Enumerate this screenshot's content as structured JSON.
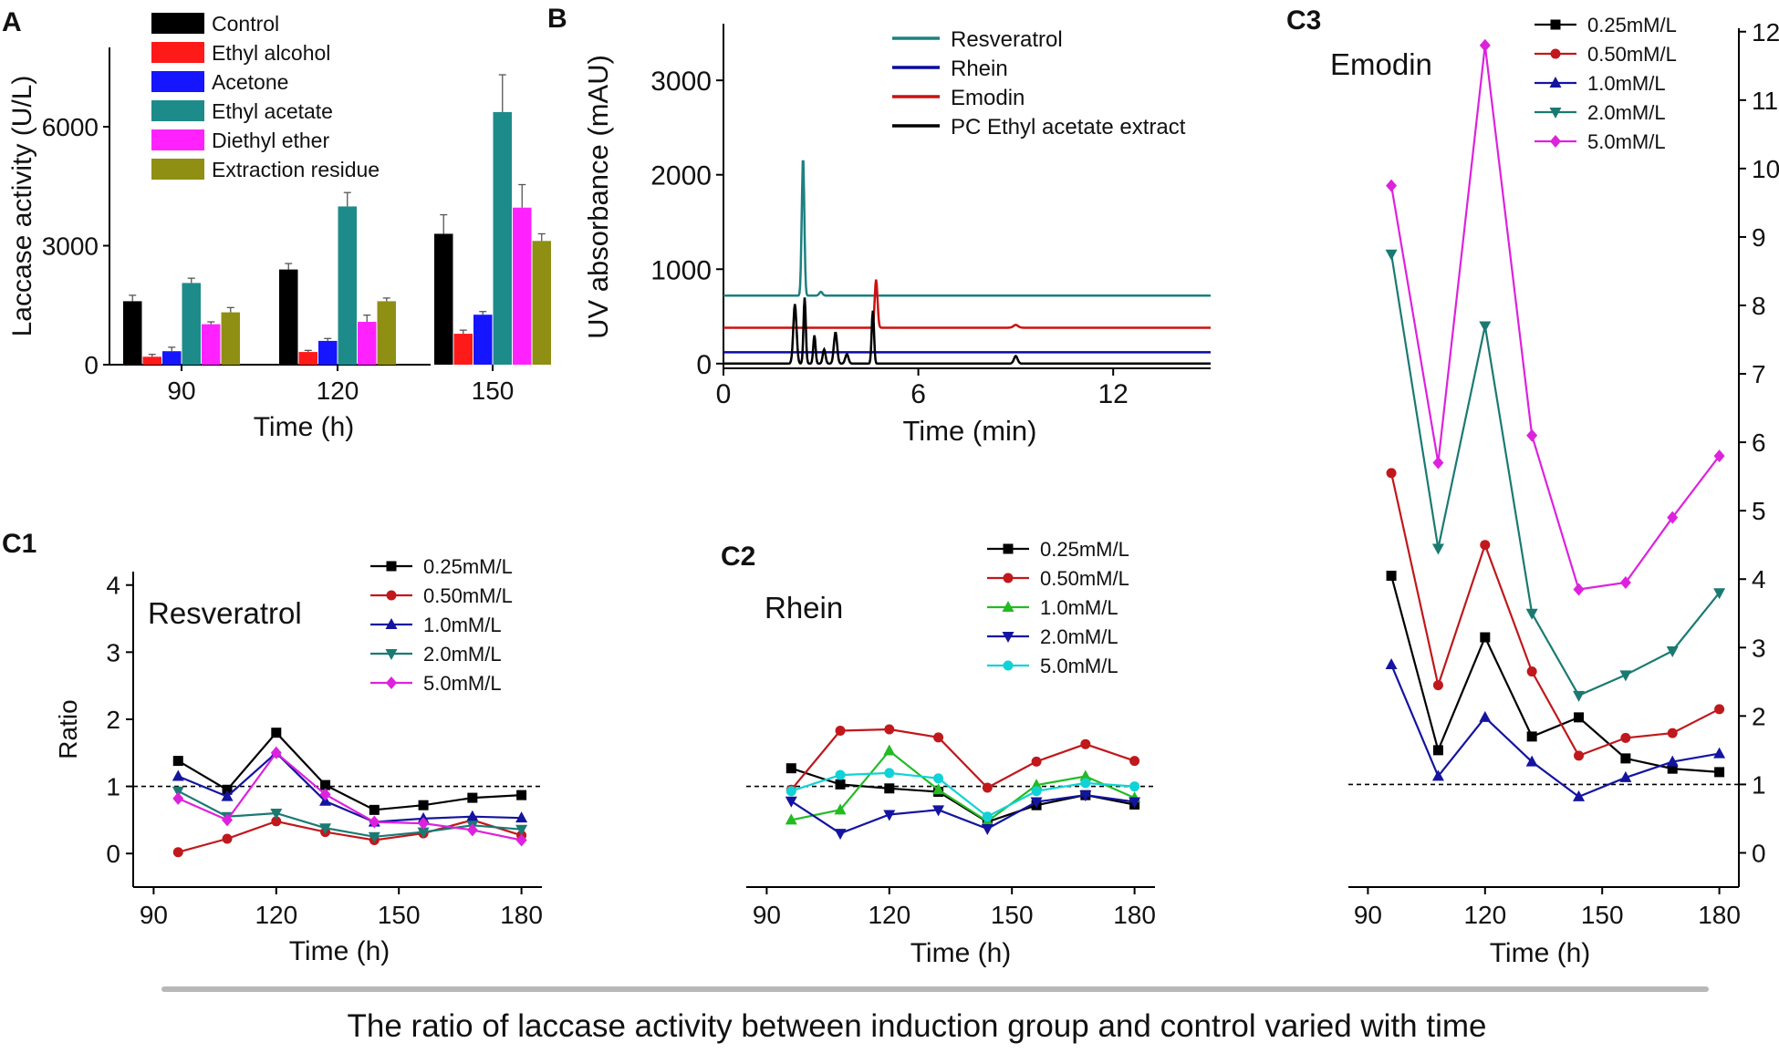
{
  "caption": "The ratio of laccase activity between induction group and control varied with time",
  "chart_data": [
    {
      "id": "A",
      "panel_label": "A",
      "type": "bar",
      "title": "",
      "xlabel": "Time (h)",
      "ylabel": "Laccase activity (U/L)",
      "ylim": [
        0,
        8000
      ],
      "yticks": [
        "0",
        "3000",
        "6000"
      ],
      "categories": [
        "90",
        "120",
        "150"
      ],
      "legend_position": "top-left",
      "series": [
        {
          "name": "Control",
          "color": "#000000",
          "values": [
            1600,
            2400,
            3300
          ],
          "errors": [
            150,
            150,
            480
          ]
        },
        {
          "name": "Ethyl alcohol",
          "color": "#ff1a1a",
          "values": [
            200,
            320,
            780
          ],
          "errors": [
            60,
            40,
            90
          ]
        },
        {
          "name": "Acetone",
          "color": "#1515ff",
          "values": [
            340,
            600,
            1260
          ],
          "errors": [
            100,
            60,
            80
          ]
        },
        {
          "name": "Ethyl acetate",
          "color": "#1e8b8b",
          "values": [
            2060,
            3990,
            6370
          ],
          "errors": [
            120,
            350,
            940
          ]
        },
        {
          "name": "Diethyl ether",
          "color": "#ff22ff",
          "values": [
            1020,
            1080,
            3960
          ],
          "errors": [
            60,
            170,
            580
          ]
        },
        {
          "name": "Extraction residue",
          "color": "#8f8f14",
          "values": [
            1320,
            1600,
            3120
          ],
          "errors": [
            120,
            80,
            180
          ]
        }
      ]
    },
    {
      "id": "B",
      "panel_label": "B",
      "type": "line",
      "title": "",
      "xlabel": "Time (min)",
      "ylabel": "UV absorbance (mAU)",
      "xlim": [
        0,
        15
      ],
      "ylim": [
        -50,
        3600
      ],
      "xticks": [
        "0",
        "6",
        "12"
      ],
      "yticks": [
        "0",
        "1000",
        "2000",
        "3000"
      ],
      "legend_position": "top-right",
      "series": [
        {
          "name": "Resveratrol",
          "color": "#1e8080",
          "baseline": 720,
          "peaks": [
            [
              2.45,
              1470,
              0.055
            ],
            [
              3.0,
              40,
              0.07
            ]
          ]
        },
        {
          "name": "Rhein",
          "color": "#0a0aa0",
          "baseline": 120,
          "peaks": []
        },
        {
          "name": "Emodin",
          "color": "#cc1111",
          "baseline": 380,
          "peaks": [
            [
              4.7,
              510,
              0.06
            ],
            [
              9.0,
              30,
              0.1
            ]
          ]
        },
        {
          "name": "PC Ethyl acetate extract",
          "color": "#000000",
          "baseline": 0,
          "peaks": [
            [
              2.2,
              630,
              0.07
            ],
            [
              2.5,
              700,
              0.05
            ],
            [
              2.8,
              300,
              0.05
            ],
            [
              3.1,
              150,
              0.06
            ],
            [
              3.45,
              330,
              0.07
            ],
            [
              3.8,
              100,
              0.07
            ],
            [
              4.6,
              560,
              0.05
            ],
            [
              9.0,
              80,
              0.08
            ]
          ]
        }
      ]
    },
    {
      "id": "C1",
      "panel_label": "C1",
      "type": "line",
      "title": "Resveratrol",
      "xlabel": "Time (h)",
      "ylabel": "Ratio",
      "xlim": [
        85,
        185
      ],
      "ylim": [
        -0.5,
        4.2
      ],
      "xticks": [
        "90",
        "120",
        "150",
        "180"
      ],
      "yticks": [
        "0",
        "1",
        "2",
        "3",
        "4"
      ],
      "reference_line": 1,
      "x": [
        96,
        108,
        120,
        132,
        144,
        156,
        168,
        180
      ],
      "legend_position": "top-right",
      "series": [
        {
          "name": "0.25mM/L",
          "color": "#000000",
          "marker": "square",
          "values": [
            1.38,
            0.95,
            1.8,
            1.02,
            0.65,
            0.72,
            0.83,
            0.87
          ]
        },
        {
          "name": "0.50mM/L",
          "color": "#c0181c",
          "marker": "circle",
          "values": [
            0.02,
            0.22,
            0.48,
            0.32,
            0.2,
            0.3,
            0.5,
            0.27
          ]
        },
        {
          "name": "1.0mM/L",
          "color": "#1414a0",
          "marker": "triangle-up",
          "values": [
            1.15,
            0.85,
            1.5,
            0.78,
            0.47,
            0.52,
            0.55,
            0.53
          ]
        },
        {
          "name": "2.0mM/L",
          "color": "#1a7a72",
          "marker": "triangle-down",
          "values": [
            0.93,
            0.55,
            0.6,
            0.38,
            0.25,
            0.32,
            0.42,
            0.36
          ]
        },
        {
          "name": "5.0mM/L",
          "color": "#dd22dd",
          "marker": "diamond",
          "values": [
            0.82,
            0.5,
            1.5,
            0.88,
            0.47,
            0.45,
            0.35,
            0.2
          ]
        }
      ]
    },
    {
      "id": "C2",
      "panel_label": "C2",
      "type": "line",
      "title": "Rhein",
      "xlabel": "Time (h)",
      "ylabel": "",
      "xlim": [
        85,
        185
      ],
      "ylim": [
        -0.5,
        4.2
      ],
      "xticks": [
        "90",
        "120",
        "150",
        "180"
      ],
      "yticks": [],
      "reference_line": 1,
      "x": [
        96,
        108,
        120,
        132,
        144,
        156,
        168,
        180
      ],
      "legend_position": "top-right",
      "series": [
        {
          "name": "0.25mM/L",
          "color": "#000000",
          "marker": "square",
          "values": [
            1.27,
            1.03,
            0.97,
            0.92,
            0.47,
            0.72,
            0.87,
            0.73
          ]
        },
        {
          "name": "0.50mM/L",
          "color": "#c0181c",
          "marker": "circle",
          "values": [
            0.95,
            1.83,
            1.85,
            1.73,
            0.98,
            1.37,
            1.63,
            1.38
          ]
        },
        {
          "name": "1.0mM/L",
          "color": "#22bb22",
          "marker": "triangle-up",
          "values": [
            0.5,
            0.65,
            1.53,
            0.95,
            0.48,
            1.02,
            1.15,
            0.83
          ]
        },
        {
          "name": "2.0mM/L",
          "color": "#1414a0",
          "marker": "triangle-down",
          "values": [
            0.78,
            0.3,
            0.58,
            0.65,
            0.37,
            0.77,
            0.87,
            0.77
          ]
        },
        {
          "name": "5.0mM/L",
          "color": "#11d2d6",
          "marker": "circle",
          "values": [
            0.93,
            1.17,
            1.2,
            1.12,
            0.55,
            0.93,
            1.05,
            1.0
          ]
        }
      ]
    },
    {
      "id": "C3",
      "panel_label": "C3",
      "type": "line",
      "title": "Emodin",
      "xlabel": "Time (h)",
      "ylabel": "",
      "xlim": [
        85,
        185
      ],
      "ylim": [
        -0.5,
        12.05
      ],
      "xticks": [
        "90",
        "120",
        "150",
        "180"
      ],
      "yticks": [
        "0",
        "1",
        "2",
        "3",
        "4",
        "5",
        "6",
        "7",
        "8",
        "9",
        "10",
        "11",
        "12"
      ],
      "y_axis_side": "right",
      "reference_line": 1,
      "x": [
        96,
        108,
        120,
        132,
        144,
        156,
        168,
        180
      ],
      "legend_position": "top-right",
      "series": [
        {
          "name": "0.25mM/L",
          "color": "#000000",
          "marker": "square",
          "values": [
            4.05,
            1.5,
            3.15,
            1.7,
            1.98,
            1.38,
            1.23,
            1.18
          ]
        },
        {
          "name": "0.50mM/L",
          "color": "#c0181c",
          "marker": "circle",
          "values": [
            5.55,
            2.45,
            4.5,
            2.65,
            1.42,
            1.68,
            1.75,
            2.1
          ]
        },
        {
          "name": "1.0mM/L",
          "color": "#1414a0",
          "marker": "triangle-up",
          "values": [
            2.75,
            1.12,
            1.98,
            1.33,
            0.82,
            1.1,
            1.33,
            1.45
          ]
        },
        {
          "name": "2.0mM/L",
          "color": "#1a7a72",
          "marker": "triangle-down",
          "values": [
            8.75,
            4.45,
            7.7,
            3.5,
            2.3,
            2.6,
            2.95,
            3.8
          ]
        },
        {
          "name": "5.0mM/L",
          "color": "#dd22dd",
          "marker": "diamond",
          "values": [
            9.75,
            5.7,
            11.8,
            6.1,
            3.85,
            3.95,
            4.9,
            5.8
          ]
        }
      ]
    }
  ]
}
